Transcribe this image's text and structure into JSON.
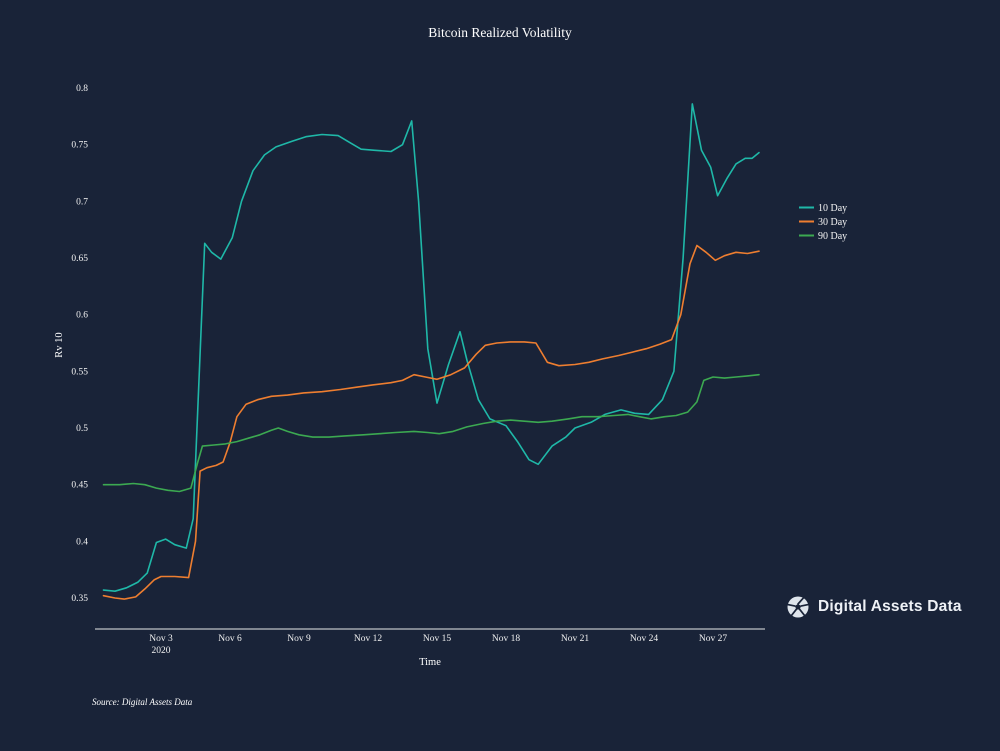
{
  "page": {
    "background_color": "#192338"
  },
  "chart": {
    "title": "Bitcoin Realized Volatility",
    "xlabel": "Time",
    "ylabel": "Rv 10",
    "source_note": "Source: Digital Assets Data"
  },
  "branding": {
    "logo_text": "Digital Assets Data"
  },
  "chart_data": {
    "type": "line",
    "title": "Bitcoin Realized Volatility",
    "xlabel": "Time",
    "ylabel": "Rv 10",
    "x_unit": "day of November 2020",
    "ylim": [
      0.35,
      0.8
    ],
    "grid": false,
    "legend_position": "right",
    "y_ticks": [
      {
        "value": 0.35,
        "label": "0.35"
      },
      {
        "value": 0.4,
        "label": "0.4"
      },
      {
        "value": 0.45,
        "label": "0.45"
      },
      {
        "value": 0.5,
        "label": "0.5"
      },
      {
        "value": 0.55,
        "label": "0.55"
      },
      {
        "value": 0.6,
        "label": "0.6"
      },
      {
        "value": 0.65,
        "label": "0.65"
      },
      {
        "value": 0.7,
        "label": "0.7"
      },
      {
        "value": 0.75,
        "label": "0.75"
      },
      {
        "value": 0.8,
        "label": "0.8"
      }
    ],
    "x_ticks": [
      {
        "day": 3,
        "label": "Nov 3",
        "sublabel": "2020"
      },
      {
        "day": 6,
        "label": "Nov 6"
      },
      {
        "day": 9,
        "label": "Nov 9"
      },
      {
        "day": 12,
        "label": "Nov 12"
      },
      {
        "day": 15,
        "label": "Nov 15"
      },
      {
        "day": 18,
        "label": "Nov 18"
      },
      {
        "day": 21,
        "label": "Nov 21"
      },
      {
        "day": 24,
        "label": "Nov 24"
      },
      {
        "day": 27,
        "label": "Nov 27"
      }
    ],
    "series": [
      {
        "name": "10 Day",
        "color": "#1fb8a8",
        "points": [
          [
            0.5,
            0.357
          ],
          [
            1,
            0.356
          ],
          [
            1.5,
            0.359
          ],
          [
            2,
            0.364
          ],
          [
            2.4,
            0.372
          ],
          [
            2.8,
            0.399
          ],
          [
            3.2,
            0.402
          ],
          [
            3.6,
            0.397
          ],
          [
            4.1,
            0.394
          ],
          [
            4.4,
            0.42
          ],
          [
            4.9,
            0.663
          ],
          [
            5.2,
            0.655
          ],
          [
            5.6,
            0.649
          ],
          [
            6.1,
            0.668
          ],
          [
            6.5,
            0.7
          ],
          [
            7,
            0.727
          ],
          [
            7.5,
            0.741
          ],
          [
            8,
            0.748
          ],
          [
            8.7,
            0.753
          ],
          [
            9.3,
            0.757
          ],
          [
            10,
            0.759
          ],
          [
            10.7,
            0.758
          ],
          [
            11.2,
            0.752
          ],
          [
            11.7,
            0.746
          ],
          [
            12.3,
            0.745
          ],
          [
            13,
            0.744
          ],
          [
            13.5,
            0.75
          ],
          [
            13.9,
            0.771
          ],
          [
            14.2,
            0.7
          ],
          [
            14.6,
            0.57
          ],
          [
            15,
            0.522
          ],
          [
            15.5,
            0.556
          ],
          [
            16,
            0.585
          ],
          [
            16.3,
            0.56
          ],
          [
            16.8,
            0.525
          ],
          [
            17.3,
            0.508
          ],
          [
            18,
            0.502
          ],
          [
            18.5,
            0.488
          ],
          [
            19,
            0.472
          ],
          [
            19.4,
            0.468
          ],
          [
            20,
            0.484
          ],
          [
            20.6,
            0.492
          ],
          [
            21,
            0.5
          ],
          [
            21.7,
            0.505
          ],
          [
            22.3,
            0.512
          ],
          [
            23,
            0.516
          ],
          [
            23.6,
            0.513
          ],
          [
            24.2,
            0.512
          ],
          [
            24.8,
            0.525
          ],
          [
            25.3,
            0.55
          ],
          [
            25.7,
            0.65
          ],
          [
            26.1,
            0.786
          ],
          [
            26.5,
            0.745
          ],
          [
            26.9,
            0.73
          ],
          [
            27.2,
            0.705
          ],
          [
            27.6,
            0.72
          ],
          [
            28,
            0.733
          ],
          [
            28.4,
            0.738
          ],
          [
            28.7,
            0.738
          ],
          [
            29,
            0.743
          ]
        ]
      },
      {
        "name": "30 Day",
        "color": "#ee7e30",
        "points": [
          [
            0.5,
            0.352
          ],
          [
            1,
            0.35
          ],
          [
            1.4,
            0.349
          ],
          [
            1.9,
            0.351
          ],
          [
            2.3,
            0.358
          ],
          [
            2.7,
            0.366
          ],
          [
            3,
            0.369
          ],
          [
            3.6,
            0.369
          ],
          [
            4.2,
            0.368
          ],
          [
            4.5,
            0.4
          ],
          [
            4.7,
            0.462
          ],
          [
            5,
            0.465
          ],
          [
            5.4,
            0.467
          ],
          [
            5.7,
            0.47
          ],
          [
            6,
            0.487
          ],
          [
            6.3,
            0.51
          ],
          [
            6.7,
            0.521
          ],
          [
            7.2,
            0.525
          ],
          [
            7.8,
            0.528
          ],
          [
            8.5,
            0.529
          ],
          [
            9.2,
            0.531
          ],
          [
            10,
            0.532
          ],
          [
            10.8,
            0.534
          ],
          [
            11.5,
            0.536
          ],
          [
            12.2,
            0.538
          ],
          [
            13,
            0.54
          ],
          [
            13.5,
            0.542
          ],
          [
            14,
            0.547
          ],
          [
            14.5,
            0.545
          ],
          [
            15,
            0.543
          ],
          [
            15.6,
            0.547
          ],
          [
            16.2,
            0.553
          ],
          [
            16.7,
            0.565
          ],
          [
            17.1,
            0.573
          ],
          [
            17.6,
            0.575
          ],
          [
            18.2,
            0.576
          ],
          [
            18.8,
            0.576
          ],
          [
            19.3,
            0.575
          ],
          [
            19.8,
            0.558
          ],
          [
            20.3,
            0.555
          ],
          [
            21,
            0.556
          ],
          [
            21.6,
            0.558
          ],
          [
            22.2,
            0.561
          ],
          [
            22.9,
            0.564
          ],
          [
            23.5,
            0.567
          ],
          [
            24.1,
            0.57
          ],
          [
            24.7,
            0.574
          ],
          [
            25.2,
            0.578
          ],
          [
            25.6,
            0.6
          ],
          [
            26,
            0.645
          ],
          [
            26.3,
            0.661
          ],
          [
            26.7,
            0.655
          ],
          [
            27.1,
            0.648
          ],
          [
            27.5,
            0.652
          ],
          [
            28,
            0.655
          ],
          [
            28.5,
            0.654
          ],
          [
            29,
            0.656
          ]
        ]
      },
      {
        "name": "90 Day",
        "color": "#3ca951",
        "points": [
          [
            0.5,
            0.45
          ],
          [
            1.2,
            0.45
          ],
          [
            1.8,
            0.451
          ],
          [
            2.3,
            0.45
          ],
          [
            2.8,
            0.447
          ],
          [
            3.3,
            0.445
          ],
          [
            3.8,
            0.444
          ],
          [
            4.3,
            0.447
          ],
          [
            4.6,
            0.47
          ],
          [
            4.8,
            0.484
          ],
          [
            5.3,
            0.485
          ],
          [
            5.8,
            0.486
          ],
          [
            6.3,
            0.488
          ],
          [
            6.8,
            0.491
          ],
          [
            7.3,
            0.494
          ],
          [
            7.8,
            0.498
          ],
          [
            8.1,
            0.5
          ],
          [
            8.5,
            0.497
          ],
          [
            9,
            0.494
          ],
          [
            9.6,
            0.492
          ],
          [
            10.3,
            0.492
          ],
          [
            11,
            0.493
          ],
          [
            11.8,
            0.494
          ],
          [
            12.5,
            0.495
          ],
          [
            13.2,
            0.496
          ],
          [
            14,
            0.497
          ],
          [
            14.6,
            0.496
          ],
          [
            15.1,
            0.495
          ],
          [
            15.7,
            0.497
          ],
          [
            16.3,
            0.501
          ],
          [
            17,
            0.504
          ],
          [
            17.6,
            0.506
          ],
          [
            18.2,
            0.507
          ],
          [
            18.8,
            0.506
          ],
          [
            19.4,
            0.505
          ],
          [
            20,
            0.506
          ],
          [
            20.7,
            0.508
          ],
          [
            21.3,
            0.51
          ],
          [
            22,
            0.51
          ],
          [
            22.7,
            0.511
          ],
          [
            23.3,
            0.512
          ],
          [
            23.8,
            0.51
          ],
          [
            24.3,
            0.508
          ],
          [
            24.9,
            0.51
          ],
          [
            25.4,
            0.511
          ],
          [
            25.9,
            0.514
          ],
          [
            26.3,
            0.523
          ],
          [
            26.6,
            0.542
          ],
          [
            27,
            0.545
          ],
          [
            27.5,
            0.544
          ],
          [
            28,
            0.545
          ],
          [
            28.5,
            0.546
          ],
          [
            29,
            0.547
          ]
        ]
      }
    ]
  }
}
